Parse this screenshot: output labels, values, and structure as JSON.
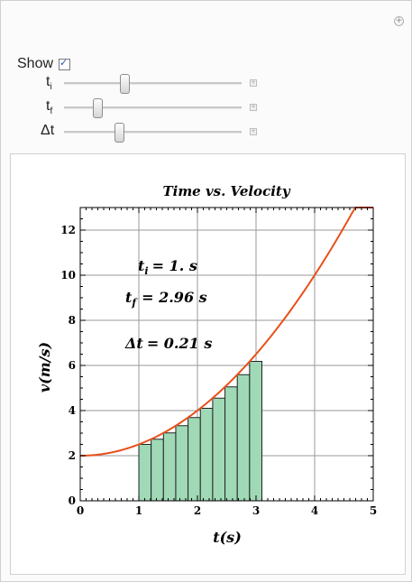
{
  "controls": {
    "show": {
      "label": "Show",
      "checked": true
    },
    "ti": {
      "label": "t",
      "sub": "i",
      "position": 0.34
    },
    "tf": {
      "label": "t",
      "sub": "f",
      "position": 0.19
    },
    "dt": {
      "label": "Δt",
      "position": 0.31
    }
  },
  "plot": {
    "annotation_ti": "= 1. s",
    "annotation_tf": "= 2.96 s",
    "annotation_dt_sym": "Δt",
    "annotation_dt": "= 0.21 s"
  },
  "colors": {
    "curve": "#e8501a",
    "bars": "#9fd9b6",
    "bar_stroke": "#222222"
  },
  "chart_data": {
    "type": "bar",
    "title": "Time vs. Velocity",
    "xlabel": "t(s)",
    "ylabel": "v(m/s)",
    "xlim": [
      0,
      5
    ],
    "ylim": [
      0,
      13
    ],
    "xticks": [
      0,
      1,
      2,
      3,
      4,
      5
    ],
    "yticks": [
      0,
      2,
      4,
      6,
      8,
      10,
      12
    ],
    "grid": true,
    "curve": {
      "type": "line",
      "formula": "v = 2 + t^2/2",
      "x_range": [
        0,
        5
      ]
    },
    "bars": {
      "x_start": [
        1.0,
        1.21,
        1.42,
        1.63,
        1.84,
        2.05,
        2.26,
        2.47,
        2.68,
        2.89
      ],
      "width": 0.21,
      "heights": [
        2.5,
        2.73,
        3.01,
        3.33,
        3.69,
        4.1,
        4.55,
        5.05,
        5.59,
        6.18
      ]
    }
  }
}
